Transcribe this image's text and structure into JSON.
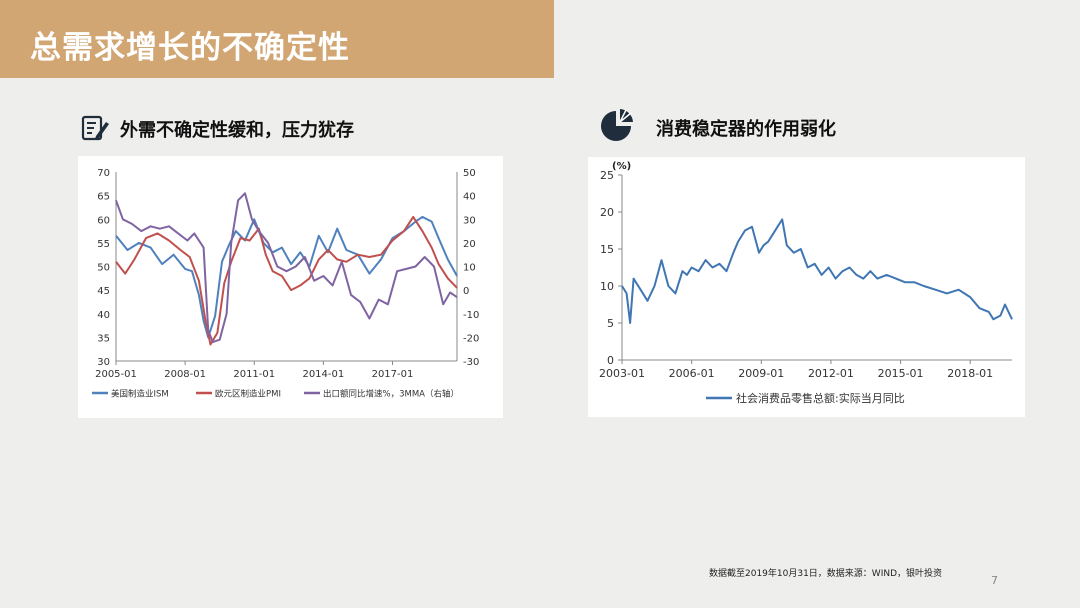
{
  "header": {
    "title": "总需求增长的不确定性"
  },
  "left_panel": {
    "heading": "外需不确定性缓和，压力犹存",
    "icon": "document-edit-icon"
  },
  "right_panel": {
    "heading": "消费稳定器的作用弱化",
    "icon": "pie-chart-icon"
  },
  "footer": {
    "note": "数据截至2019年10月31日，数据来源：WIND，银叶投资",
    "page_number": "7"
  },
  "colors": {
    "banner": "#d2a673",
    "ism": "#4f81bd",
    "pmi": "#c0504d",
    "export": "#8064a2",
    "retail": "#3f76b3"
  },
  "chart_data": [
    {
      "type": "line",
      "x_ticks": [
        "2005-01",
        "2008-01",
        "2011-01",
        "2014-01",
        "2017-01"
      ],
      "x_range": [
        2005.0,
        2019.8
      ],
      "ylim_left": [
        30,
        70
      ],
      "yticks_left": [
        30,
        35,
        40,
        45,
        50,
        55,
        60,
        65,
        70
      ],
      "ylim_right": [
        -30,
        50
      ],
      "yticks_right": [
        -30,
        -20,
        -10,
        0,
        10,
        20,
        30,
        40,
        50
      ],
      "grid": false,
      "legend_position": "bottom",
      "series": [
        {
          "name": "美国制造业ISM",
          "axis": "left",
          "x": [
            2005.0,
            2005.5,
            2006.0,
            2006.5,
            2007.0,
            2007.5,
            2008.0,
            2008.3,
            2008.6,
            2008.8,
            2009.0,
            2009.3,
            2009.6,
            2009.9,
            2010.2,
            2010.6,
            2011.0,
            2011.4,
            2011.8,
            2012.2,
            2012.6,
            2013.0,
            2013.4,
            2013.8,
            2014.2,
            2014.6,
            2015.0,
            2015.5,
            2016.0,
            2016.5,
            2017.0,
            2017.5,
            2018.0,
            2018.3,
            2018.7,
            2019.0,
            2019.4,
            2019.8
          ],
          "y": [
            56.5,
            53.5,
            55.0,
            54.0,
            50.5,
            52.5,
            49.5,
            49.0,
            44.0,
            38.5,
            35.0,
            39.5,
            51.0,
            54.5,
            57.5,
            55.5,
            60.0,
            55.0,
            53.0,
            54.0,
            50.5,
            53.0,
            50.0,
            56.5,
            53.0,
            58.0,
            53.5,
            52.5,
            48.5,
            51.5,
            56.0,
            57.5,
            59.5,
            60.5,
            59.5,
            56.0,
            51.5,
            48.0
          ]
        },
        {
          "name": "欧元区制造业PMI",
          "axis": "left",
          "x": [
            2005.0,
            2005.4,
            2005.8,
            2006.3,
            2006.8,
            2007.3,
            2007.8,
            2008.2,
            2008.6,
            2008.9,
            2009.1,
            2009.4,
            2009.7,
            2010.0,
            2010.4,
            2010.8,
            2011.2,
            2011.5,
            2011.8,
            2012.2,
            2012.6,
            2013.0,
            2013.4,
            2013.8,
            2014.2,
            2014.6,
            2015.0,
            2015.5,
            2016.0,
            2016.5,
            2017.0,
            2017.5,
            2017.9,
            2018.3,
            2018.7,
            2019.0,
            2019.4,
            2019.8
          ],
          "y": [
            51.0,
            48.5,
            51.5,
            56.0,
            57.0,
            55.5,
            53.5,
            52.0,
            47.0,
            38.0,
            33.5,
            36.0,
            46.5,
            51.0,
            56.0,
            55.5,
            58.0,
            52.5,
            49.0,
            48.0,
            45.0,
            46.0,
            47.5,
            51.5,
            53.5,
            51.5,
            51.0,
            52.5,
            52.0,
            52.5,
            55.5,
            57.5,
            60.5,
            57.5,
            54.0,
            50.5,
            47.5,
            45.5
          ]
        },
        {
          "name": "出口额同比增速%，3MMA（右轴）",
          "axis": "right",
          "x": [
            2005.0,
            2005.3,
            2005.7,
            2006.1,
            2006.5,
            2006.9,
            2007.3,
            2007.7,
            2008.1,
            2008.4,
            2008.8,
            2009.0,
            2009.2,
            2009.5,
            2009.8,
            2010.0,
            2010.3,
            2010.6,
            2010.9,
            2011.2,
            2011.6,
            2012.0,
            2012.4,
            2012.8,
            2013.2,
            2013.6,
            2014.0,
            2014.4,
            2014.8,
            2015.2,
            2015.6,
            2016.0,
            2016.4,
            2016.8,
            2017.2,
            2017.6,
            2018.0,
            2018.4,
            2018.8,
            2019.0,
            2019.2,
            2019.5,
            2019.8
          ],
          "y": [
            38.0,
            30.0,
            28.0,
            25.0,
            27.0,
            26.0,
            27.0,
            24.0,
            21.0,
            24.0,
            18.0,
            -17.0,
            -22.0,
            -21.0,
            -10.0,
            20.0,
            38.0,
            41.0,
            30.0,
            25.0,
            20.0,
            10.0,
            8.0,
            10.0,
            14.0,
            4.0,
            6.0,
            2.0,
            12.0,
            -2.0,
            -5.0,
            -12.0,
            -4.0,
            -6.0,
            8.0,
            9.0,
            10.0,
            14.0,
            10.0,
            2.0,
            -6.0,
            -1.0,
            -3.0
          ]
        }
      ]
    },
    {
      "type": "line",
      "y_unit": "(%)",
      "x_ticks": [
        "2003-01",
        "2006-01",
        "2009-01",
        "2012-01",
        "2015-01",
        "2018-01"
      ],
      "x_range": [
        2003.0,
        2019.8
      ],
      "ylim": [
        0,
        25
      ],
      "yticks": [
        0,
        5,
        10,
        15,
        20,
        25
      ],
      "grid": false,
      "legend_position": "bottom",
      "series": [
        {
          "name": "社会消费品零售总额:实际当月同比",
          "x": [
            2003.0,
            2003.2,
            2003.35,
            2003.5,
            2003.8,
            2004.1,
            2004.4,
            2004.7,
            2005.0,
            2005.3,
            2005.6,
            2005.8,
            2006.0,
            2006.3,
            2006.6,
            2006.9,
            2007.2,
            2007.5,
            2007.8,
            2008.0,
            2008.3,
            2008.6,
            2008.9,
            2009.1,
            2009.3,
            2009.5,
            2009.7,
            2009.9,
            2010.1,
            2010.4,
            2010.7,
            2011.0,
            2011.3,
            2011.6,
            2011.9,
            2012.2,
            2012.5,
            2012.8,
            2013.1,
            2013.4,
            2013.7,
            2014.0,
            2014.4,
            2014.8,
            2015.2,
            2015.6,
            2016.0,
            2016.5,
            2017.0,
            2017.5,
            2018.0,
            2018.4,
            2018.8,
            2019.0,
            2019.3,
            2019.5,
            2019.8
          ],
          "y": [
            10.0,
            9.0,
            5.0,
            11.0,
            9.5,
            8.0,
            10.0,
            13.5,
            10.0,
            9.0,
            12.0,
            11.5,
            12.5,
            12.0,
            13.5,
            12.5,
            13.0,
            12.0,
            14.5,
            16.0,
            17.5,
            18.0,
            14.5,
            15.5,
            16.0,
            17.0,
            18.0,
            19.0,
            15.5,
            14.5,
            15.0,
            12.5,
            13.0,
            11.5,
            12.5,
            11.0,
            12.0,
            12.5,
            11.5,
            11.0,
            12.0,
            11.0,
            11.5,
            11.0,
            10.5,
            10.5,
            10.0,
            9.5,
            9.0,
            9.5,
            8.5,
            7.0,
            6.5,
            5.5,
            6.0,
            7.5,
            5.5
          ]
        }
      ]
    }
  ]
}
